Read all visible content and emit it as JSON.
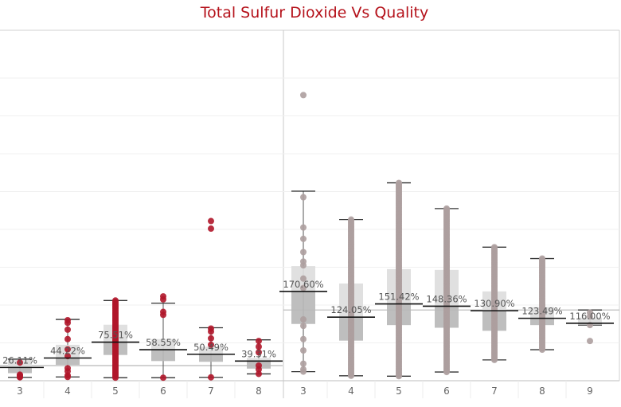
{
  "chart_data": {
    "type": "box",
    "title": "Total Sulfur Dioxide Vs Quality",
    "xlabel": "",
    "ylabel": "",
    "grid": true,
    "panels": [
      {
        "point_color": "#b0162a",
        "reference_line": 0.4,
        "groups": [
          {
            "category": "3",
            "label": "26.11%",
            "median": 0.35,
            "q1": 0.2,
            "q3": 0.55,
            "whisker_low": 0.09,
            "whisker_high": 0.57,
            "outliers": [
              0.1,
              0.14,
              0.16,
              0.48
            ]
          },
          {
            "category": "4",
            "label": "44.22%",
            "median": 0.6,
            "q1": 0.42,
            "q3": 0.95,
            "whisker_low": 0.1,
            "whisker_high": 1.62,
            "outliers": [
              0.14,
              0.25,
              0.33,
              0.65,
              0.83,
              1.1,
              1.35,
              1.53,
              1.6
            ]
          },
          {
            "category": "5",
            "label": "75.51%",
            "median": 1.02,
            "q1": 0.68,
            "q3": 1.48,
            "whisker_low": 0.08,
            "whisker_high": 2.12,
            "outliers": []
          },
          {
            "category": "6",
            "label": "58.55%",
            "median": 0.82,
            "q1": 0.52,
            "q3": 1.1,
            "whisker_low": 0.08,
            "whisker_high": 2.05,
            "outliers": [
              2.15,
              2.23,
              1.82,
              1.74
            ]
          },
          {
            "category": "7",
            "label": "50.49%",
            "median": 0.7,
            "q1": 0.5,
            "q3": 0.9,
            "whisker_low": 0.09,
            "whisker_high": 1.4,
            "outliers": [
              4.02,
              4.22,
              1.3,
              1.38,
              1.12,
              0.95
            ]
          },
          {
            "category": "8",
            "label": "39.31%",
            "median": 0.52,
            "q1": 0.32,
            "q3": 0.6,
            "whisker_low": 0.18,
            "whisker_high": 1.08,
            "outliers": [
              0.3,
              0.4,
              0.75,
              0.9,
              1.05
            ]
          }
        ]
      },
      {
        "point_color": "#ad9e9e",
        "reference_line": 1.87,
        "groups": [
          {
            "category": "3",
            "label": "170.60%",
            "median": 2.36,
            "q1": 1.5,
            "q3": 3.03,
            "whisker_low": 0.24,
            "whisker_high": 5.01,
            "outliers": [
              0.3,
              0.45,
              0.8,
              1.1,
              1.45,
              1.62,
              2.45,
              2.7,
              3.05,
              3.15,
              3.4,
              3.75,
              4.05,
              4.85,
              7.55
            ]
          },
          {
            "category": "4",
            "label": "124.05%",
            "median": 1.68,
            "q1": 1.06,
            "q3": 2.57,
            "whisker_low": 0.13,
            "whisker_high": 4.26,
            "outliers": []
          },
          {
            "category": "5",
            "label": "151.42%",
            "median": 2.03,
            "q1": 1.47,
            "q3": 2.95,
            "whisker_low": 0.12,
            "whisker_high": 5.23,
            "outliers": []
          },
          {
            "category": "6",
            "label": "148.36%",
            "median": 1.97,
            "q1": 1.4,
            "q3": 2.93,
            "whisker_low": 0.23,
            "whisker_high": 4.55,
            "outliers": []
          },
          {
            "category": "7",
            "label": "130.90%",
            "median": 1.85,
            "q1": 1.32,
            "q3": 2.36,
            "whisker_low": 0.55,
            "whisker_high": 3.53,
            "outliers": []
          },
          {
            "category": "8",
            "label": "123.49%",
            "median": 1.65,
            "q1": 1.47,
            "q3": 1.95,
            "whisker_low": 0.82,
            "whisker_high": 3.23,
            "outliers": []
          },
          {
            "category": "9",
            "label": "116.00%",
            "median": 1.52,
            "q1": 1.47,
            "q3": 1.67,
            "whisker_low": 1.47,
            "whisker_high": 1.87,
            "outliers": [
              1.05,
              1.7,
              1.8
            ]
          }
        ]
      }
    ]
  }
}
